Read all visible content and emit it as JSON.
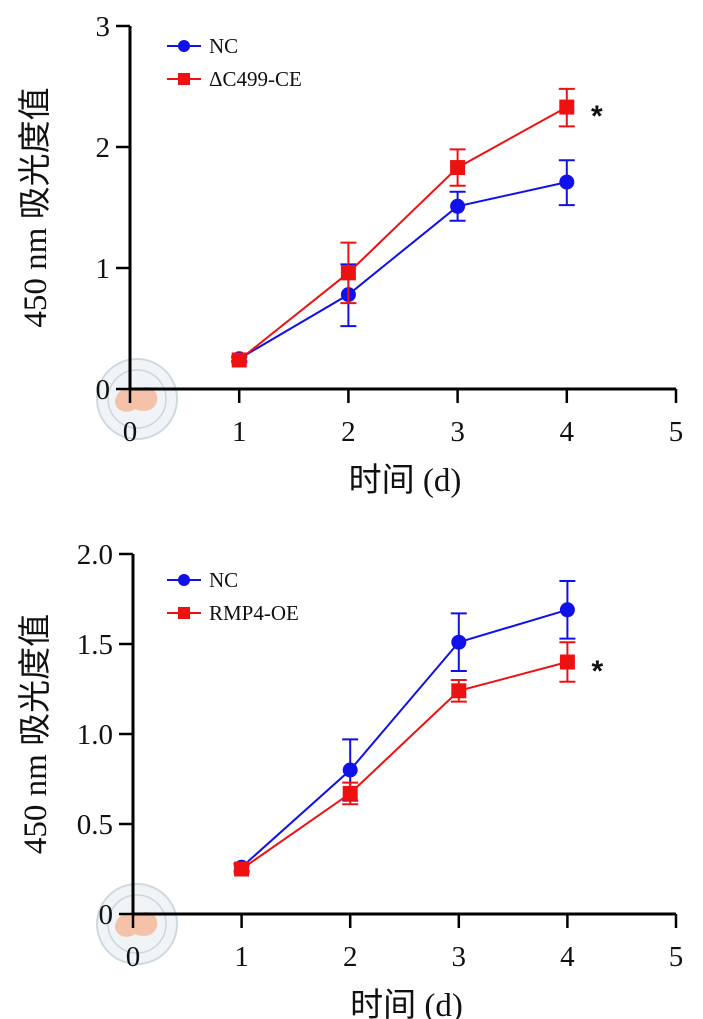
{
  "chart_data": [
    {
      "type": "line",
      "title": "",
      "xlabel": "时间 (d)",
      "ylabel": "450 nm 吸光度值",
      "xlim": [
        0,
        5
      ],
      "ylim": [
        0,
        3
      ],
      "x_ticks": [
        "0",
        "1",
        "2",
        "3",
        "4",
        "5"
      ],
      "y_ticks": [
        "0",
        "1",
        "2",
        "3"
      ],
      "legend_position": "top-left",
      "series": [
        {
          "name": "NC",
          "color": "#1010e8",
          "marker": "circle",
          "x": [
            1,
            2,
            3,
            4
          ],
          "y": [
            0.25,
            0.78,
            1.51,
            1.71
          ],
          "error_upper": [
            0.27,
            1.03,
            1.63,
            1.89
          ],
          "error_lower": [
            0.23,
            0.52,
            1.39,
            1.52
          ]
        },
        {
          "name": "ΔC499-CE",
          "color": "#ee1111",
          "marker": "square",
          "x": [
            1,
            2,
            3,
            4
          ],
          "y": [
            0.24,
            0.96,
            1.83,
            2.33
          ],
          "error_upper": [
            0.26,
            1.21,
            1.98,
            2.48
          ],
          "error_lower": [
            0.22,
            0.71,
            1.68,
            2.17
          ]
        }
      ],
      "annotation": {
        "text": "*",
        "x": 4,
        "near_series": "ΔC499-CE"
      }
    },
    {
      "type": "line",
      "title": "",
      "xlabel": "时间 (d)",
      "ylabel": "450 nm 吸光度值",
      "xlim": [
        0,
        5
      ],
      "ylim": [
        0,
        2
      ],
      "x_ticks": [
        "0",
        "1",
        "2",
        "3",
        "4",
        "5"
      ],
      "y_ticks": [
        "0",
        "0.5",
        "1.0",
        "1.5",
        "2.0"
      ],
      "legend_position": "top-left",
      "series": [
        {
          "name": "NC",
          "color": "#1010e8",
          "marker": "circle",
          "x": [
            1,
            2,
            3,
            4
          ],
          "y": [
            0.26,
            0.8,
            1.51,
            1.69
          ],
          "error_upper": [
            0.28,
            0.97,
            1.67,
            1.85
          ],
          "error_lower": [
            0.24,
            0.63,
            1.35,
            1.53
          ]
        },
        {
          "name": "RMP4-OE",
          "color": "#ee1111",
          "marker": "square",
          "x": [
            1,
            2,
            3,
            4
          ],
          "y": [
            0.25,
            0.67,
            1.24,
            1.4
          ],
          "error_upper": [
            0.27,
            0.73,
            1.3,
            1.51
          ],
          "error_lower": [
            0.23,
            0.61,
            1.18,
            1.29
          ]
        }
      ],
      "annotation": {
        "text": "*",
        "x": 4,
        "near_series": "RMP4-OE"
      }
    }
  ]
}
